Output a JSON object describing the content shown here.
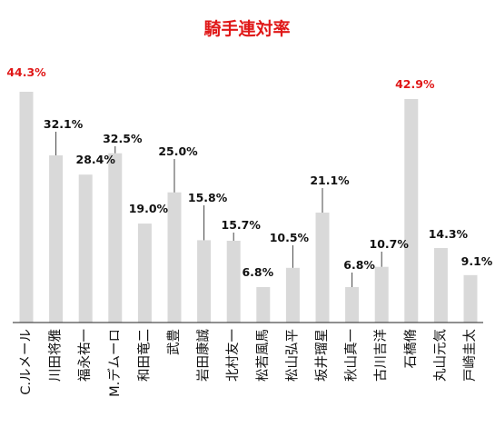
{
  "chart_data": {
    "type": "bar",
    "title": "騎手連対率",
    "categories": [
      "C.ルメール",
      "川田将雅",
      "福永祐一",
      "M.デムーロ",
      "和田竜二",
      "武豊",
      "岩田康誠",
      "北村友一",
      "松若風馬",
      "松山弘平",
      "坂井瑠星",
      "秋山真一",
      "古川吉洋",
      "石橋脩",
      "丸山元気",
      "戸崎圭太"
    ],
    "values": [
      44.3,
      32.1,
      28.4,
      32.5,
      19.0,
      25.0,
      15.8,
      15.7,
      6.8,
      10.5,
      21.1,
      6.8,
      10.7,
      42.9,
      14.3,
      9.1
    ],
    "labels": [
      "44.3%",
      "32.1%",
      "28.4%",
      "32.5%",
      "19.0%",
      "25.0%",
      "15.8%",
      "15.7%",
      "6.8%",
      "10.5%",
      "21.1%",
      "6.8%",
      "10.7%",
      "42.9%",
      "14.3%",
      "9.1%"
    ],
    "highlighted": [
      0,
      13
    ],
    "xlabel": "",
    "ylabel": "",
    "ylim": [
      0,
      44.3
    ],
    "grid": false,
    "legend": "none",
    "colors": {
      "bar": "#d9d9d9",
      "highlight_label": "#e01818",
      "label": "#111111",
      "title": "#e01818",
      "axis": "#222222"
    }
  }
}
